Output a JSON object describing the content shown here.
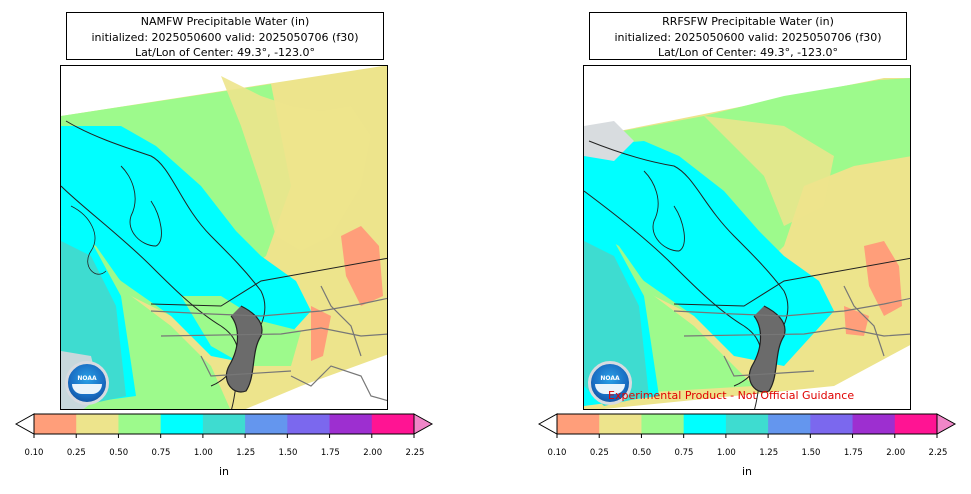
{
  "panels": [
    {
      "id": "namfw",
      "title_line1": "NAMFW Precipitable Water (in)",
      "title_line2": "initialized: 2025050600 valid: 2025050706 (f30)",
      "title_line3": "Lat/Lon of Center: 49.3°, -123.0°",
      "logo_text": "NOAA",
      "disclaimer": ""
    },
    {
      "id": "rrfsfw",
      "title_line1": "RRFSFW Precipitable Water (in)",
      "title_line2": "initialized: 2025050600 valid: 2025050706 (f30)",
      "title_line3": "Lat/Lon of Center: 49.3°, -123.0°",
      "logo_text": "NOAA",
      "disclaimer": "Experimental Product - Not Official Guidance"
    }
  ],
  "colorbar": {
    "unit_label": "in",
    "ticks": [
      "0.10",
      "0.25",
      "0.50",
      "0.75",
      "1.00",
      "1.25",
      "1.50",
      "1.75",
      "2.00",
      "2.25"
    ],
    "colors": [
      "#ff9e7a",
      "#ede48c",
      "#9dfa8c",
      "#00ffff",
      "#3edcd0",
      "#6496ee",
      "#7b68ee",
      "#9d2fd0",
      "#ff1493"
    ],
    "under_color": "#ffffff",
    "over_color": "#f086c8"
  }
}
